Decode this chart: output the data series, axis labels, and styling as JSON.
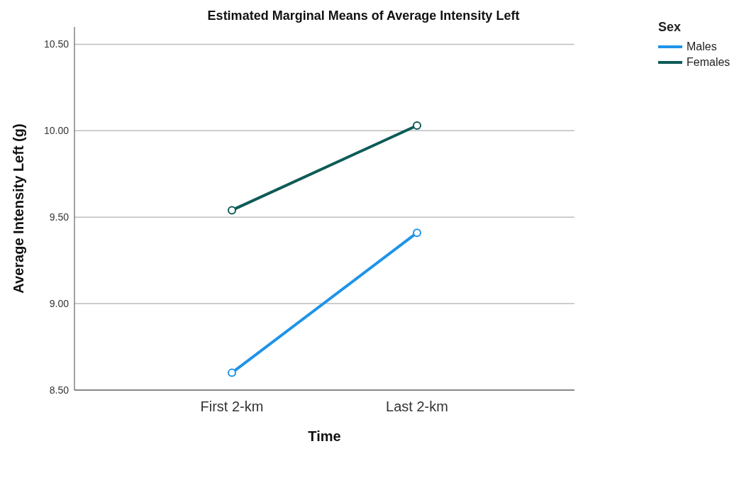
{
  "chart_data": {
    "type": "line",
    "title": "Estimated Marginal Means of Average Intensity Left",
    "xlabel": "Time",
    "ylabel": "Average Intensity Left (g)",
    "legend_title": "Sex",
    "categories": [
      "First 2-km",
      "Last 2-km"
    ],
    "series": [
      {
        "name": "Males",
        "color": "#1f94e8",
        "values": [
          8.6,
          9.41
        ]
      },
      {
        "name": "Females",
        "color": "#0d5b57",
        "values": [
          9.54,
          10.03
        ]
      }
    ],
    "ylim": [
      8.5,
      10.6
    ],
    "yticks": [
      {
        "value": 8.5,
        "label": "8.50"
      },
      {
        "value": 9,
        "label": "9.00"
      },
      {
        "value": 9.5,
        "label": "9.50"
      },
      {
        "value": 10,
        "label": "10.00"
      },
      {
        "value": 10.5,
        "label": "10.50"
      }
    ],
    "grid": "y",
    "legend": "top right",
    "marker": "circle",
    "line_style": "solid"
  }
}
